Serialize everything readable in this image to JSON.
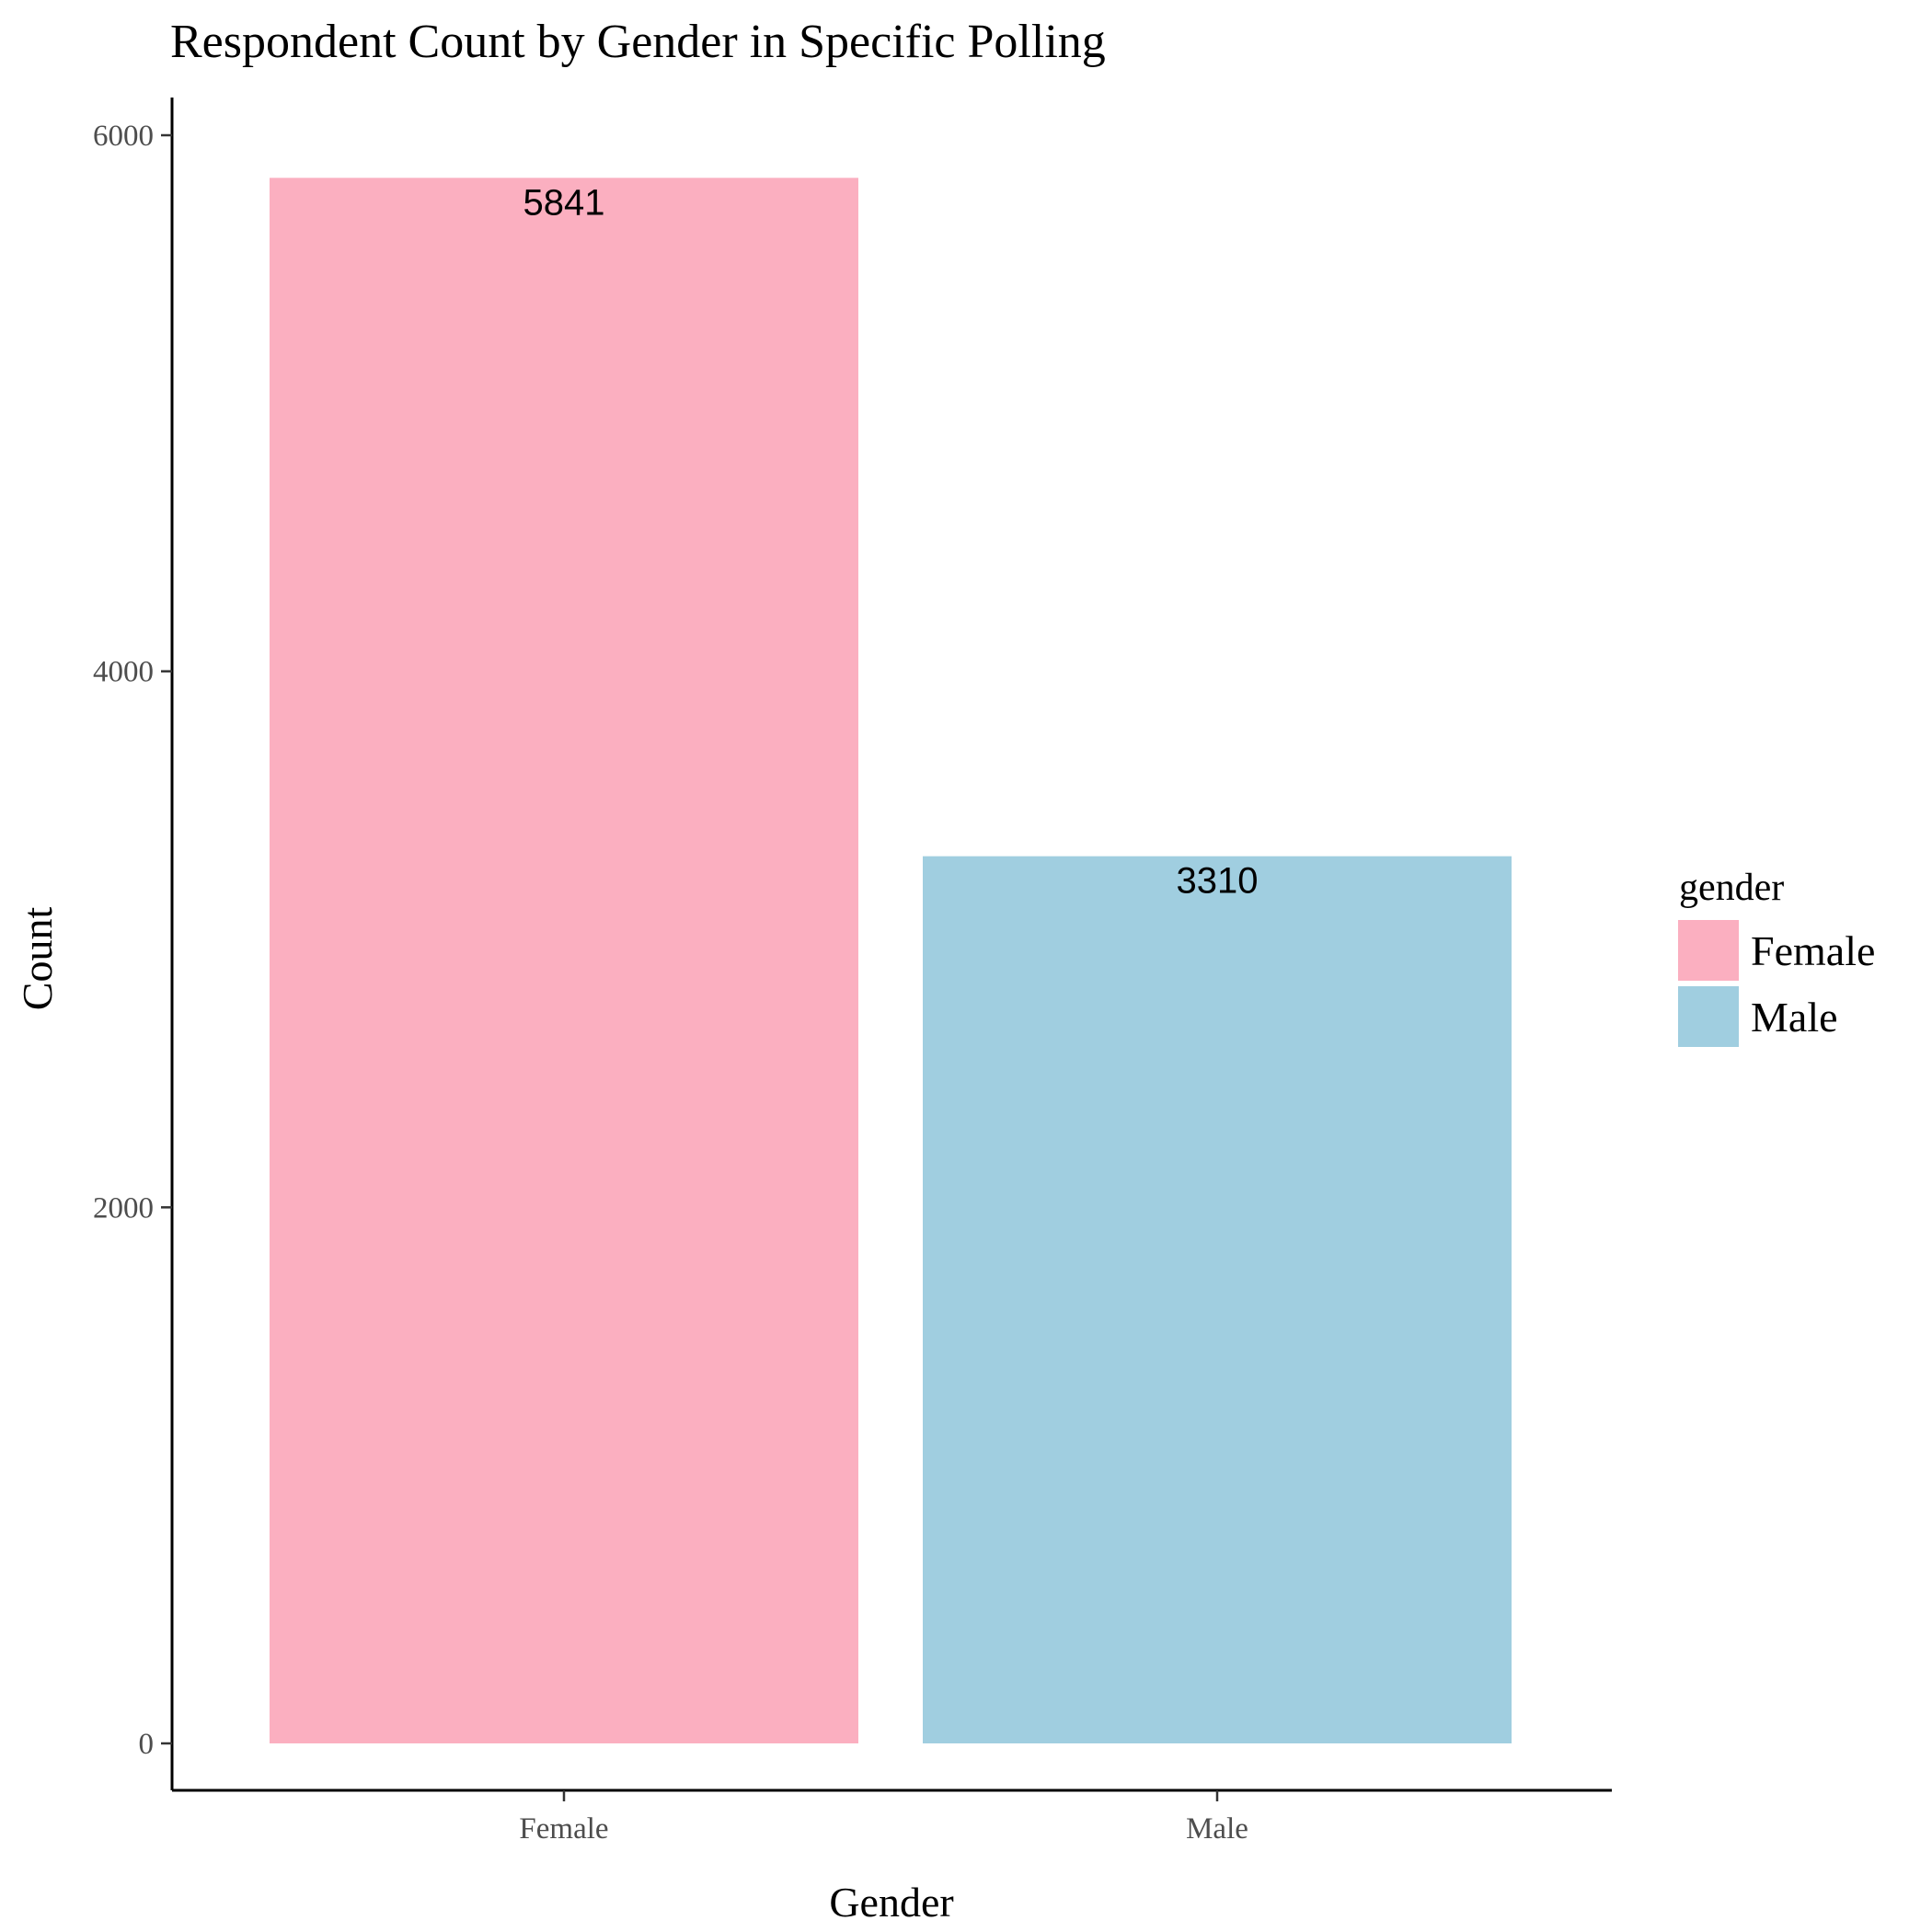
{
  "chart_data": {
    "type": "bar",
    "title": "Respondent Count by Gender in Specific Polling",
    "xlabel": "Gender",
    "ylabel": "Count",
    "categories": [
      "Female",
      "Male"
    ],
    "values": [
      5841,
      3310
    ],
    "colors": [
      "#fbafc0",
      "#a0cee0"
    ],
    "ylim": [
      -600,
      6150
    ],
    "yticks": [
      0,
      2000,
      4000,
      6000
    ],
    "grid": false,
    "legend": {
      "title": "gender",
      "placement": "right",
      "entries": [
        "Female",
        "Male"
      ]
    }
  }
}
